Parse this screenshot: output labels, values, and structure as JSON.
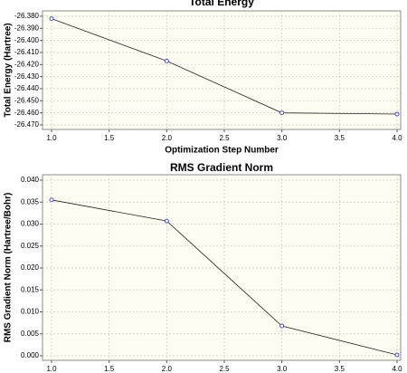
{
  "chart_data": [
    {
      "type": "line",
      "title": "Total Energy",
      "x_label": "Optimization Step Number",
      "y_label": "Total Energy (Hartree)",
      "x": [
        1,
        2,
        3,
        4
      ],
      "values": [
        -26.382,
        -26.417,
        -26.46,
        -26.461
      ],
      "color": "#222222",
      "marker_color": "#3a3ad0",
      "xlim": [
        1,
        4
      ],
      "ylim": [
        -26.47,
        -26.38
      ],
      "grid": true,
      "xticks": [
        {
          "value": 1,
          "label": "1.0"
        },
        {
          "value": 1.5,
          "label": "1.5"
        },
        {
          "value": 2,
          "label": "2.0"
        },
        {
          "value": 2.5,
          "label": "2.5"
        },
        {
          "value": 3,
          "label": "3.0"
        },
        {
          "value": 3.5,
          "label": "3.5"
        },
        {
          "value": 4,
          "label": "4.0"
        }
      ],
      "yticks": [
        {
          "value": -26.38,
          "label": "-26.380"
        },
        {
          "value": -26.39,
          "label": "-26.390"
        },
        {
          "value": -26.4,
          "label": "-26.400"
        },
        {
          "value": -26.41,
          "label": "-26.410"
        },
        {
          "value": -26.42,
          "label": "-26.420"
        },
        {
          "value": -26.43,
          "label": "-26.430"
        },
        {
          "value": -26.44,
          "label": "-26.440"
        },
        {
          "value": -26.45,
          "label": "-26.450"
        },
        {
          "value": -26.46,
          "label": "-26.460"
        },
        {
          "value": -26.47,
          "label": "-26.470"
        }
      ]
    },
    {
      "type": "line",
      "title": "RMS Gradient Norm",
      "y_label": "RMS Gradient Norm (Hartree/Bohr)",
      "x": [
        1,
        2,
        3,
        4
      ],
      "values": [
        0.0355,
        0.0307,
        0.0068,
        0.0002
      ],
      "color": "#222222",
      "marker_color": "#3a3ad0",
      "xlim": [
        1,
        4
      ],
      "ylim": [
        0,
        0.04
      ],
      "grid": true,
      "xticks": [
        {
          "value": 1,
          "label": "1.0"
        },
        {
          "value": 1.5,
          "label": "1.5"
        },
        {
          "value": 2,
          "label": "2.0"
        },
        {
          "value": 2.5,
          "label": "2.5"
        },
        {
          "value": 3,
          "label": "3.0"
        },
        {
          "value": 3.5,
          "label": "3.5"
        },
        {
          "value": 4,
          "label": "4.0"
        }
      ],
      "yticks": [
        {
          "value": 0,
          "label": "0.000"
        },
        {
          "value": 0.005,
          "label": "0.005"
        },
        {
          "value": 0.01,
          "label": "0.010"
        },
        {
          "value": 0.015,
          "label": "0.015"
        },
        {
          "value": 0.02,
          "label": "0.020"
        },
        {
          "value": 0.025,
          "label": "0.025"
        },
        {
          "value": 0.03,
          "label": "0.030"
        },
        {
          "value": 0.035,
          "label": "0.035"
        },
        {
          "value": 0.04,
          "label": "0.040"
        }
      ]
    }
  ]
}
